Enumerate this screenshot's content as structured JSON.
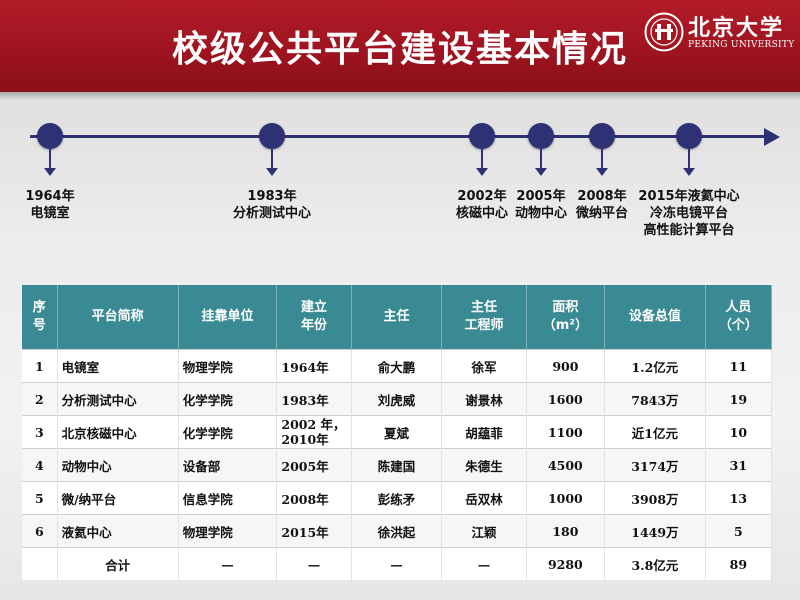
{
  "header": {
    "title": "校级公共平台建设基本情况",
    "logo_cn": "北京大学",
    "logo_en": "PEKING UNIVERSITY"
  },
  "timeline": [
    {
      "year": "1964年",
      "lines": [
        "电镜室"
      ]
    },
    {
      "year": "1983年",
      "lines": [
        "分析测试中心"
      ]
    },
    {
      "year": "2002年",
      "lines": [
        "核磁中心"
      ]
    },
    {
      "year": "2005年",
      "lines": [
        "动物中心"
      ]
    },
    {
      "year": "2008年",
      "lines": [
        "微纳平台"
      ]
    },
    {
      "year": "2015年液氦中心",
      "lines": [
        "冷冻电镜平台",
        "高性能计算平台"
      ]
    }
  ],
  "table": {
    "headers": [
      [
        "序",
        "号"
      ],
      [
        "平台简称"
      ],
      [
        "挂靠单位"
      ],
      [
        "建立",
        "年份"
      ],
      [
        "主任"
      ],
      [
        "主任",
        "工程师"
      ],
      [
        "面积",
        "（m²）"
      ],
      [
        "设备总值"
      ],
      [
        "人员",
        "（个）"
      ]
    ],
    "rows": [
      [
        "1",
        "电镜室",
        "物理学院",
        "1964年",
        "俞大鹏",
        "徐军",
        "900",
        "1.2亿元",
        "11"
      ],
      [
        "2",
        "分析测试中心",
        "化学学院",
        "1983年",
        "刘虎威",
        "谢景林",
        "1600",
        "7843万",
        "19"
      ],
      [
        "3",
        "北京核磁中心",
        "化学学院",
        "2002 年，\n2010年",
        "夏斌",
        "胡蕴菲",
        "1100",
        "近1亿元",
        "10"
      ],
      [
        "4",
        "动物中心",
        "设备部",
        "2005年",
        "陈建国",
        "朱德生",
        "4500",
        "3174万",
        "31"
      ],
      [
        "5",
        "微/纳平台",
        "信息学院",
        "2008年",
        "彭练矛",
        "岳双林",
        "1000",
        "3908万",
        "13"
      ],
      [
        "6",
        "液氦中心",
        "物理学院",
        "2015年",
        "徐洪起",
        "江颖",
        "180",
        "1449万",
        "5"
      ]
    ],
    "total": [
      "",
      "合计",
      "—",
      "—",
      "—",
      "—",
      "9280",
      "3.8亿元",
      "89"
    ]
  },
  "colors": {
    "header_red": "#9e1420",
    "timeline_navy": "#2e3274",
    "table_header_teal": "#3a8a93"
  }
}
